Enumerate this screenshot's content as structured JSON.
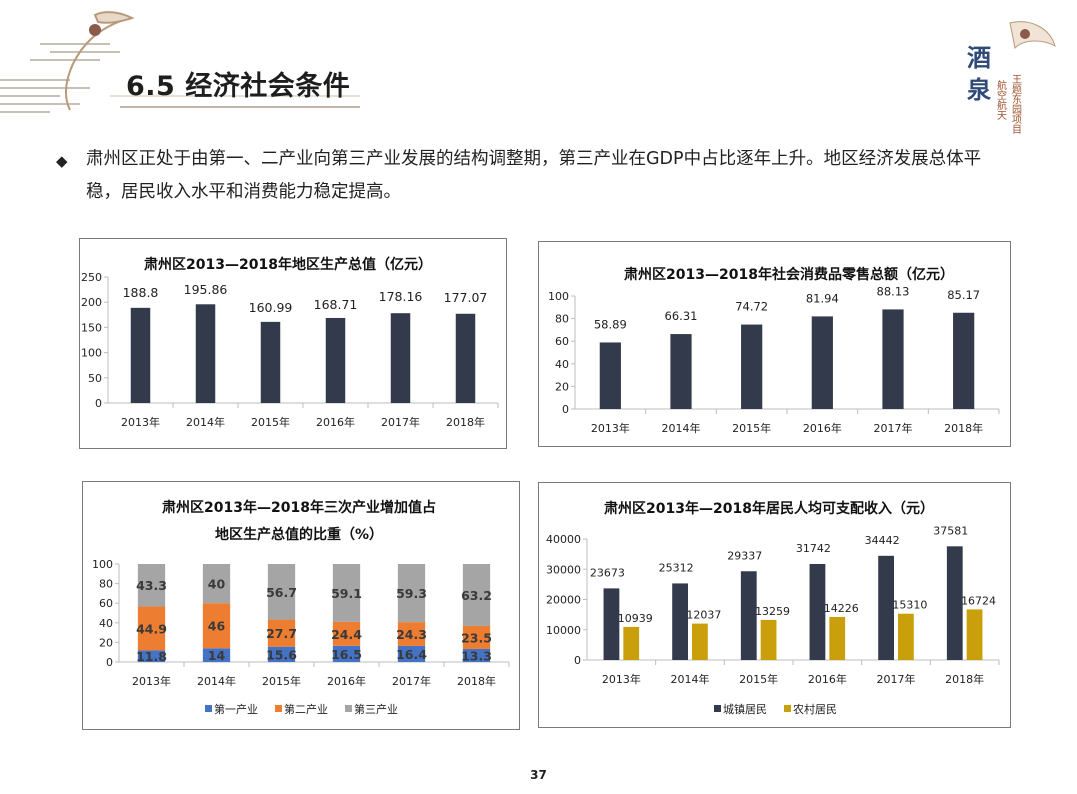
{
  "slide": {
    "title": "6.5 经济社会条件",
    "intro_text": "肃州区正处于由第一、二产业向第三产业发展的结构调整期，第三产业在GDP中占比逐年上升。地区经济发展总体平稳，居民收入水平和消费能力稳定提高。",
    "page_number": "37",
    "logo_text": "酒泉",
    "logo_subtitle": [
      "王题东园项目",
      "航空航天"
    ]
  },
  "colors": {
    "navy": "#323a4b",
    "primary": "#4472c4",
    "secondary": "#ed7d31",
    "tertiary": "#a5a5a5",
    "rural": "#c9a00c"
  },
  "chart_data": [
    {
      "id": "gdp",
      "type": "bar",
      "title": "肃州区2013—2018年地区生产总值（亿元）",
      "categories": [
        "2013年",
        "2014年",
        "2015年",
        "2016年",
        "2017年",
        "2018年"
      ],
      "values": [
        188.8,
        195.86,
        160.99,
        168.71,
        178.16,
        177.07
      ],
      "data_labels": [
        "188.8",
        "195.86",
        "160.99",
        "168.71",
        "178.16",
        "177.07"
      ],
      "ylim": [
        0,
        250
      ],
      "yticks": [
        "0",
        "50",
        "100",
        "150",
        "200",
        "250"
      ],
      "grid": false
    },
    {
      "id": "retail",
      "type": "bar",
      "title": "肃州区2013—2018年社会消费品零售总额（亿元）",
      "categories": [
        "2013年",
        "2014年",
        "2015年",
        "2016年",
        "2017年",
        "2018年"
      ],
      "values": [
        58.89,
        66.31,
        74.72,
        81.94,
        88.13,
        85.17
      ],
      "data_labels": [
        "58.89",
        "66.31",
        "74.72",
        "81.94",
        "88.13",
        "85.17"
      ],
      "ylim": [
        0,
        100
      ],
      "yticks": [
        "0",
        "20",
        "40",
        "60",
        "80",
        "100"
      ],
      "grid": false
    },
    {
      "id": "structure",
      "type": "bar",
      "stacked": true,
      "title_lines": [
        "肃州区2013年—2018年三次产业增加值占",
        "地区生产总值的比重（%）"
      ],
      "categories": [
        "2013年",
        "2014年",
        "2015年",
        "2016年",
        "2017年",
        "2018年"
      ],
      "series": [
        {
          "name": "第一产业",
          "values": [
            11.8,
            14,
            15.6,
            16.5,
            16.4,
            13.3
          ],
          "labels": [
            "11.8",
            "14",
            "15.6",
            "16.5",
            "16.4",
            "13.3"
          ]
        },
        {
          "name": "第二产业",
          "values": [
            44.9,
            46,
            27.7,
            24.4,
            24.3,
            23.5
          ],
          "labels": [
            "44.9",
            "46",
            "27.7",
            "24.4",
            "24.3",
            "23.5"
          ]
        },
        {
          "name": "第三产业",
          "values": [
            43.3,
            40,
            56.7,
            59.1,
            59.3,
            63.2
          ],
          "labels": [
            "43.3",
            "40",
            "56.7",
            "59.1",
            "59.3",
            "63.2"
          ]
        }
      ],
      "ylim": [
        0,
        100
      ],
      "yticks": [
        "0",
        "20",
        "40",
        "60",
        "80",
        "100"
      ],
      "legend_position": "bottom",
      "grid": false
    },
    {
      "id": "income",
      "type": "bar",
      "title": "肃州区2013年—2018年居民人均可支配收入（元）",
      "categories": [
        "2013年",
        "2014年",
        "2015年",
        "2016年",
        "2017年",
        "2018年"
      ],
      "series": [
        {
          "name": "城镇居民",
          "values": [
            23673,
            25312,
            29337,
            31742,
            34442,
            37581
          ],
          "labels": [
            "23673",
            "25312",
            "29337",
            "31742",
            "34442",
            "37581"
          ]
        },
        {
          "name": "农村居民",
          "values": [
            10939,
            12037,
            13259,
            14226,
            15310,
            16724
          ],
          "labels": [
            "10939",
            "12037",
            "13259",
            "14226",
            "15310",
            "16724"
          ]
        }
      ],
      "ylim": [
        0,
        40000
      ],
      "yticks": [
        "0",
        "10000",
        "20000",
        "30000",
        "40000"
      ],
      "legend_position": "bottom",
      "grid": false
    }
  ]
}
